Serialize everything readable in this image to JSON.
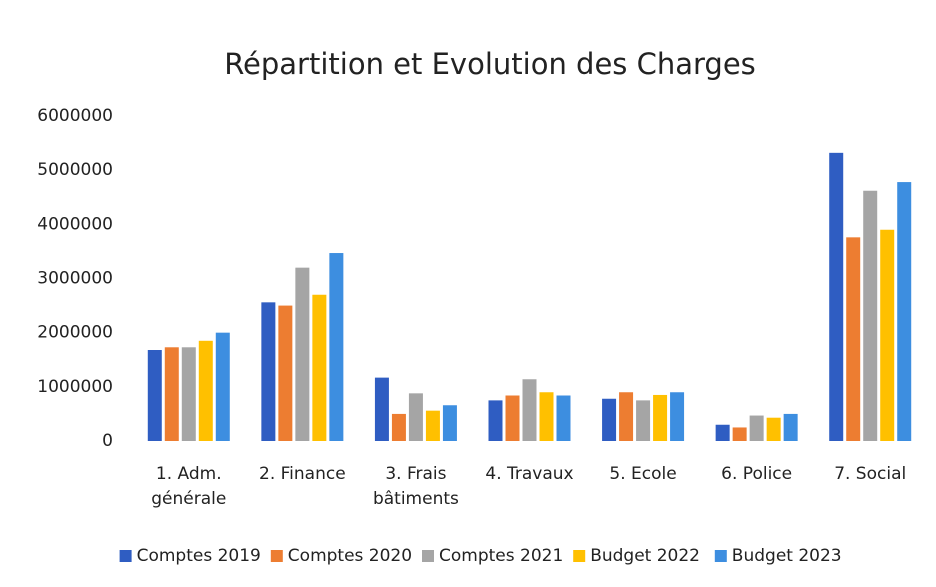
{
  "chart_data": {
    "type": "bar",
    "title": "Répartition et Evolution des Charges",
    "categories": [
      "1. Adm.\ngénérale",
      "2. Finance",
      "3. Frais\nbâtiments",
      "4.  Travaux",
      "5. Ecole",
      "6. Police",
      "7. Social"
    ],
    "series": [
      {
        "name": "Comptes 2019",
        "color": "#2f5dc2",
        "values": [
          1680000,
          2560000,
          1170000,
          750000,
          780000,
          300000,
          5320000
        ]
      },
      {
        "name": "Comptes 2020",
        "color": "#ed7d31",
        "values": [
          1730000,
          2500000,
          500000,
          840000,
          900000,
          250000,
          3760000
        ]
      },
      {
        "name": "Comptes 2021",
        "color": "#a5a5a5",
        "values": [
          1730000,
          3200000,
          880000,
          1140000,
          750000,
          470000,
          4620000
        ]
      },
      {
        "name": "Budget 2022",
        "color": "#ffc000",
        "values": [
          1850000,
          2700000,
          560000,
          900000,
          850000,
          430000,
          3900000
        ]
      },
      {
        "name": "Budget 2023",
        "color": "#3d8ee0",
        "values": [
          2000000,
          3470000,
          660000,
          840000,
          900000,
          500000,
          4780000
        ]
      }
    ],
    "ylim": [
      0,
      6000000
    ],
    "yticks": [
      0,
      1000000,
      2000000,
      3000000,
      4000000,
      5000000,
      6000000
    ],
    "grid": false,
    "legend": "bottom"
  }
}
